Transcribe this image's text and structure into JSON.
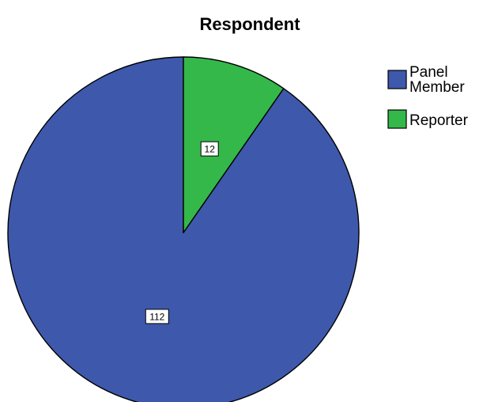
{
  "chart_data": {
    "type": "pie",
    "title": "Respondent",
    "legend_position": "top-right",
    "slices": [
      {
        "label": "Panel Member",
        "legend_lines": [
          "Panel",
          "Member"
        ],
        "value": 112,
        "color": "#3e58ac"
      },
      {
        "label": "Reporter",
        "legend_lines": [
          "Reporter"
        ],
        "value": 12,
        "color": "#34b84a"
      }
    ],
    "start_angle_deg": 0,
    "direction": "counterclockwise"
  }
}
